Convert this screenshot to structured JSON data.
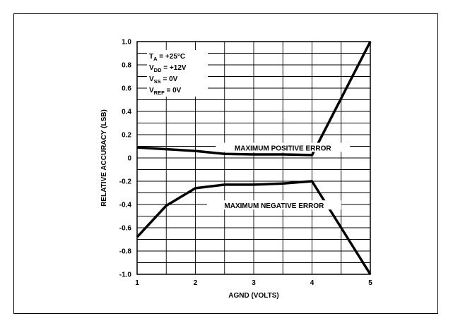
{
  "chart_data": {
    "type": "line",
    "xlabel": "AGND (VOLTS)",
    "ylabel": "RELATIVE ACCURACY (LSB)",
    "xlim": [
      1,
      5
    ],
    "ylim": [
      -1.0,
      1.0
    ],
    "x_ticks": [
      "1",
      "2",
      "3",
      "4",
      "5"
    ],
    "y_ticks": [
      "1.0",
      "0.8",
      "0.6",
      "0.4",
      "0.2",
      "0",
      "-0.2",
      "-0.4",
      "-0.6",
      "-0.8",
      "-1.0"
    ],
    "x_tick_values": [
      1,
      2,
      3,
      4,
      5
    ],
    "y_tick_values": [
      1.0,
      0.8,
      0.6,
      0.4,
      0.2,
      0,
      -0.2,
      -0.4,
      -0.6,
      -0.8,
      -1.0
    ],
    "grid": true,
    "conditions": {
      "ta": {
        "main": "T",
        "sub": "A",
        "value": " = +25°C"
      },
      "vdd": {
        "main": "V",
        "sub": "DD",
        "value": " = +12V"
      },
      "vss": {
        "main": "V",
        "sub": "SS",
        "value": " = 0V"
      },
      "vref": {
        "main": "V",
        "sub": "REF",
        "value": " = 0V"
      }
    },
    "series": [
      {
        "label": "MAXIMUM POSITIVE ERROR",
        "x": [
          1.0,
          1.5,
          2.0,
          2.5,
          3.0,
          3.5,
          4.0,
          5.0
        ],
        "y": [
          0.09,
          0.075,
          0.06,
          0.035,
          0.03,
          0.03,
          0.025,
          1.0
        ]
      },
      {
        "label": "MAXIMUM NEGATIVE ERROR",
        "x": [
          1.0,
          1.5,
          2.0,
          2.5,
          3.0,
          3.5,
          4.0,
          5.0
        ],
        "y": [
          -0.68,
          -0.41,
          -0.26,
          -0.23,
          -0.23,
          -0.22,
          -0.2,
          -1.0
        ]
      }
    ],
    "annotations": [
      {
        "text": "MAXIMUM POSITIVE ERROR",
        "x": 3.5,
        "y": 0.085
      },
      {
        "text": "MAXIMUM NEGATIVE ERROR",
        "x": 3.35,
        "y": -0.41
      }
    ],
    "line_color": "#000000"
  }
}
